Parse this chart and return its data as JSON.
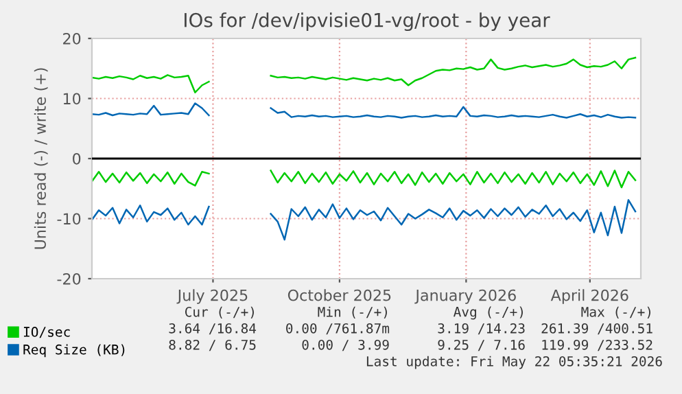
{
  "chart_data": {
    "type": "line",
    "title": "IOs for /dev/ipvisie01-vg/root - by year",
    "ylabel": "Units read (-) / write (+)",
    "x": [
      "2025-04-04",
      "2025-04-09",
      "2025-04-14",
      "2025-04-19",
      "2025-04-24",
      "2025-04-29",
      "2025-05-04",
      "2025-05-09",
      "2025-05-14",
      "2025-05-19",
      "2025-05-24",
      "2025-05-29",
      "2025-06-03",
      "2025-06-08",
      "2025-06-13",
      "2025-06-18",
      "2025-06-23",
      "2025-06-28",
      "2025-07-03",
      "2025-07-08",
      "2025-07-13",
      "2025-07-18",
      "2025-07-23",
      "2025-07-28",
      "2025-08-02",
      "2025-08-07",
      "2025-08-12",
      "2025-08-17",
      "2025-08-22",
      "2025-08-27",
      "2025-09-01",
      "2025-09-06",
      "2025-09-11",
      "2025-09-16",
      "2025-09-21",
      "2025-09-26",
      "2025-10-01",
      "2025-10-06",
      "2025-10-11",
      "2025-10-16",
      "2025-10-21",
      "2025-10-26",
      "2025-10-31",
      "2025-11-05",
      "2025-11-10",
      "2025-11-15",
      "2025-11-20",
      "2025-11-25",
      "2025-11-30",
      "2025-12-05",
      "2025-12-10",
      "2025-12-15",
      "2025-12-20",
      "2025-12-25",
      "2025-12-30",
      "2026-01-04",
      "2026-01-09",
      "2026-01-14",
      "2026-01-19",
      "2026-01-24",
      "2026-01-29",
      "2026-02-03",
      "2026-02-08",
      "2026-02-13",
      "2026-02-18",
      "2026-02-23",
      "2026-02-28",
      "2026-03-05",
      "2026-03-10",
      "2026-03-15",
      "2026-03-20",
      "2026-03-25",
      "2026-03-30",
      "2026-04-04",
      "2026-04-09",
      "2026-04-14",
      "2026-04-19",
      "2026-04-24",
      "2026-04-29",
      "2026-05-04"
    ],
    "series": [
      {
        "name": "IO/sec",
        "color": "#00cc00",
        "values": [
          13.5,
          13.3,
          13.6,
          13.4,
          13.7,
          13.5,
          13.2,
          13.8,
          13.4,
          13.6,
          13.3,
          13.9,
          13.5,
          13.6,
          13.8,
          11.0,
          12.2,
          12.8,
          null,
          null,
          null,
          null,
          null,
          null,
          null,
          null,
          13.8,
          13.5,
          13.6,
          13.4,
          13.5,
          13.3,
          13.6,
          13.4,
          13.2,
          13.5,
          13.3,
          13.1,
          13.4,
          13.2,
          13.0,
          13.3,
          13.1,
          13.4,
          13.0,
          13.2,
          12.2,
          13.0,
          13.4,
          14.0,
          14.6,
          14.8,
          14.7,
          15.0,
          14.9,
          15.2,
          14.8,
          15.0,
          16.5,
          15.1,
          14.8,
          15.0,
          15.3,
          15.5,
          15.2,
          15.4,
          15.6,
          15.3,
          15.5,
          15.8,
          16.5,
          15.6,
          15.2,
          15.4,
          15.3,
          15.6,
          16.2,
          15.0,
          16.5,
          16.8
        ]
      },
      {
        "color": "#00cc00",
        "values": [
          -3.8,
          -2.2,
          -3.9,
          -2.5,
          -4.0,
          -2.3,
          -3.7,
          -2.4,
          -4.1,
          -2.6,
          -3.8,
          -2.3,
          -4.2,
          -2.5,
          -3.9,
          -4.5,
          -2.2,
          -2.5,
          null,
          null,
          null,
          null,
          null,
          null,
          null,
          null,
          -2.0,
          -4.0,
          -2.4,
          -3.8,
          -2.2,
          -4.1,
          -2.5,
          -3.9,
          -2.3,
          -4.2,
          -2.6,
          -3.7,
          -2.1,
          -4.0,
          -2.4,
          -4.3,
          -2.5,
          -3.8,
          -2.2,
          -4.1,
          -2.6,
          -4.4,
          -2.3,
          -3.9,
          -2.5,
          -4.2,
          -2.4,
          -3.8,
          -2.6,
          -4.3,
          -2.2,
          -4.0,
          -2.5,
          -4.1,
          -2.3,
          -3.9,
          -2.6,
          -4.2,
          -2.4,
          -4.0,
          -2.2,
          -4.3,
          -2.5,
          -3.8,
          -2.3,
          -4.1,
          -2.6,
          -4.4,
          -2.1,
          -4.6,
          -2.0,
          -4.8,
          -2.2,
          -3.6
        ]
      },
      {
        "name": "Req Size (KB)",
        "color": "#0066b3",
        "values": [
          7.4,
          7.3,
          7.6,
          7.2,
          7.5,
          7.4,
          7.3,
          7.5,
          7.4,
          8.8,
          7.3,
          7.4,
          7.5,
          7.6,
          7.4,
          9.2,
          8.4,
          7.2,
          null,
          null,
          null,
          null,
          null,
          null,
          null,
          null,
          8.4,
          7.6,
          7.8,
          6.9,
          7.1,
          7.0,
          7.2,
          7.0,
          7.1,
          6.9,
          7.0,
          7.1,
          6.9,
          7.0,
          7.2,
          7.0,
          6.9,
          7.1,
          7.0,
          6.8,
          7.0,
          7.1,
          6.9,
          7.0,
          7.2,
          7.0,
          7.1,
          7.0,
          8.6,
          7.1,
          7.0,
          7.2,
          7.1,
          6.9,
          7.0,
          7.2,
          7.0,
          7.1,
          7.0,
          6.9,
          7.1,
          7.3,
          7.0,
          6.8,
          7.1,
          7.4,
          7.0,
          7.2,
          6.9,
          7.3,
          7.0,
          6.8,
          6.9,
          6.8
        ]
      },
      {
        "color": "#0066b3",
        "values": [
          -10.2,
          -8.6,
          -9.5,
          -8.2,
          -10.8,
          -8.5,
          -9.8,
          -7.8,
          -10.5,
          -8.9,
          -9.4,
          -8.3,
          -10.2,
          -9.0,
          -11.0,
          -9.6,
          -11.0,
          -8.0,
          null,
          null,
          null,
          null,
          null,
          null,
          null,
          null,
          -9.2,
          -10.5,
          -13.5,
          -8.4,
          -9.6,
          -8.1,
          -10.2,
          -8.5,
          -9.8,
          -7.6,
          -9.9,
          -8.3,
          -10.1,
          -8.6,
          -9.4,
          -8.8,
          -10.3,
          -8.2,
          -9.6,
          -11.0,
          -9.2,
          -10.0,
          -9.3,
          -8.5,
          -9.1,
          -9.8,
          -8.3,
          -10.2,
          -8.7,
          -9.5,
          -8.6,
          -9.9,
          -8.4,
          -9.6,
          -8.3,
          -9.4,
          -8.1,
          -9.7,
          -8.5,
          -9.2,
          -7.8,
          -9.6,
          -8.4,
          -10.1,
          -9.0,
          -10.4,
          -8.6,
          -12.3,
          -9.0,
          -12.8,
          -8.0,
          -12.4,
          -6.9,
          -8.8
        ]
      }
    ],
    "xlim": [
      "2025-04-04",
      "2026-05-08"
    ],
    "xticks": [
      {
        "value": "2025-07-01",
        "label": "July 2025"
      },
      {
        "value": "2025-10-01",
        "label": "October 2025"
      },
      {
        "value": "2026-01-01",
        "label": "January 2026"
      },
      {
        "value": "2026-04-01",
        "label": "April 2026"
      }
    ],
    "ylim": [
      -20,
      20
    ],
    "yticks": [
      -20,
      -10,
      0,
      10,
      20
    ],
    "ref_lines": [
      {
        "axis": "y",
        "value": 0,
        "color": "#000000"
      }
    ],
    "grid": true,
    "legend": "bottom",
    "marker": "none",
    "line_style": "solid",
    "annotations": [
      "Cur (-/+)",
      "Min (-/+)",
      "Avg (-/+)",
      "Max (-/+)",
      "3.64 /16.84",
      "0.00 /761.87m",
      "3.19 /14.23",
      "261.39 /400.51",
      "8.82 / 6.75",
      "0.00 / 3.99",
      "9.25 / 7.16",
      "119.99 /233.52",
      "Last update: Fri May 22 05:35:21 2026"
    ]
  }
}
